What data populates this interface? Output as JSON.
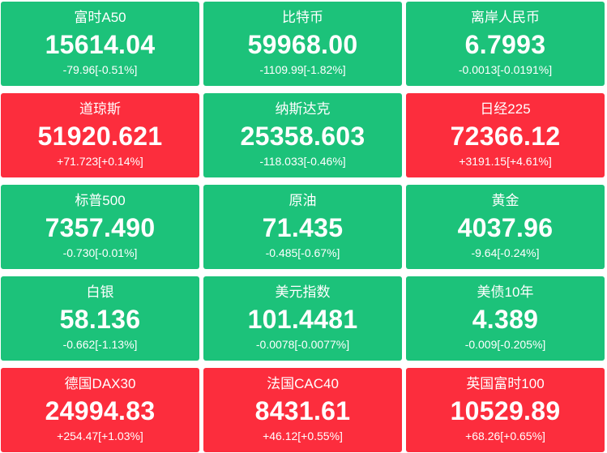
{
  "tiles": [
    {
      "name": "富时A50",
      "price": "15614.04",
      "change": "-79.96[-0.51%]",
      "trend": "down"
    },
    {
      "name": "比特币",
      "price": "59968.00",
      "change": "-1109.99[-1.82%]",
      "trend": "down"
    },
    {
      "name": "离岸人民币",
      "price": "6.7993",
      "change": "-0.0013[-0.0191%]",
      "trend": "down"
    },
    {
      "name": "道琼斯",
      "price": "51920.621",
      "change": "+71.723[+0.14%]",
      "trend": "up"
    },
    {
      "name": "纳斯达克",
      "price": "25358.603",
      "change": "-118.033[-0.46%]",
      "trend": "down"
    },
    {
      "name": "日经225",
      "price": "72366.12",
      "change": "+3191.15[+4.61%]",
      "trend": "up"
    },
    {
      "name": "标普500",
      "price": "7357.490",
      "change": "-0.730[-0.01%]",
      "trend": "down"
    },
    {
      "name": "原油",
      "price": "71.435",
      "change": "-0.485[-0.67%]",
      "trend": "down"
    },
    {
      "name": "黄金",
      "price": "4037.96",
      "change": "-9.64[-0.24%]",
      "trend": "down"
    },
    {
      "name": "白银",
      "price": "58.136",
      "change": "-0.662[-1.13%]",
      "trend": "down"
    },
    {
      "name": "美元指数",
      "price": "101.4481",
      "change": "-0.0078[-0.0077%]",
      "trend": "down"
    },
    {
      "name": "美债10年",
      "price": "4.389",
      "change": "-0.009[-0.205%]",
      "trend": "down"
    },
    {
      "name": "德国DAX30",
      "price": "24994.83",
      "change": "+254.47[+1.03%]",
      "trend": "up"
    },
    {
      "name": "法国CAC40",
      "price": "8431.61",
      "change": "+46.12[+0.55%]",
      "trend": "up"
    },
    {
      "name": "英国富时100",
      "price": "10529.89",
      "change": "+68.26[+0.65%]",
      "trend": "up"
    }
  ],
  "colors": {
    "up": "#fc2d3d",
    "down": "#1cc27a",
    "text": "#ffffff"
  }
}
